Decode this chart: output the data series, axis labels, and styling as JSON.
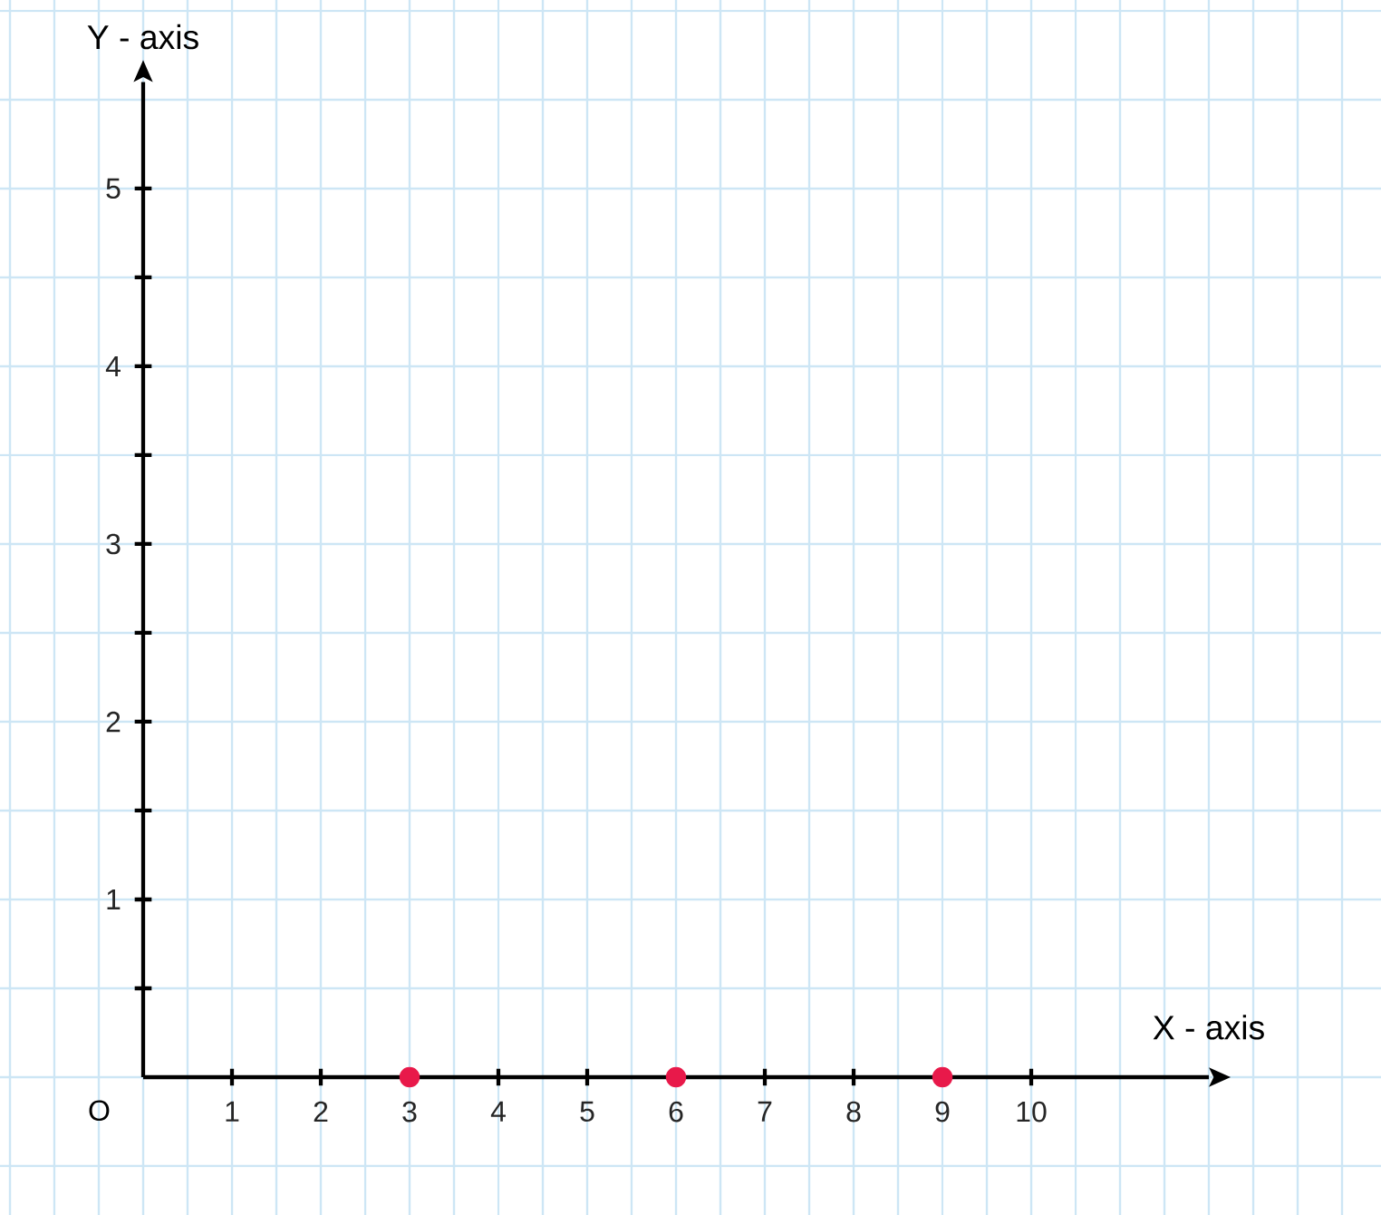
{
  "chart_data": {
    "type": "scatter",
    "xlabel": "X - axis",
    "ylabel": "Y - axis",
    "x": [
      3,
      6,
      9
    ],
    "values": [
      0,
      0,
      0
    ],
    "color": "#e8194a",
    "marker": "circle",
    "xlim": [
      0,
      12
    ],
    "ylim": [
      0,
      5.6
    ],
    "xticks": [
      1,
      2,
      3,
      4,
      5,
      6,
      7,
      8,
      9,
      10
    ],
    "yticks": [
      {
        "value": 0.5,
        "label": null
      },
      1,
      {
        "value": 1.5,
        "label": null
      },
      2,
      {
        "value": 2.5,
        "label": null
      },
      3,
      {
        "value": 3.5,
        "label": null
      },
      4,
      {
        "value": 4.5,
        "label": null
      },
      5
    ],
    "grid": true,
    "annotations": [
      "O"
    ]
  }
}
